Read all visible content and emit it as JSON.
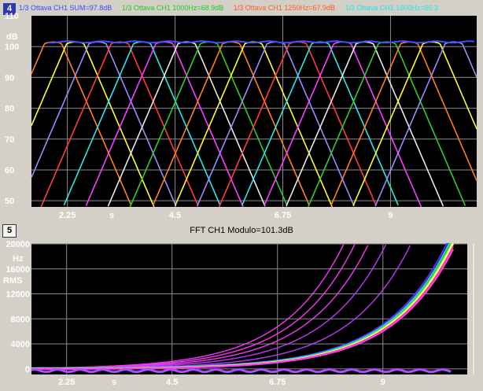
{
  "top_panel": {
    "badge": "4",
    "legend": [
      {
        "text": "1/3 Ottava CH1 SUM=97.8dB",
        "color": "#3a4bff"
      },
      {
        "text": "1/3 Ottava CH1 1000Hz=68.9dB",
        "color": "#1ec81e"
      },
      {
        "text": "1/3 Ottava CH1 1250Hz=67.9dB",
        "color": "#ff5a1e"
      },
      {
        "text": "1/3 Ottava CH1 1600Hz=66.3",
        "color": "#1ee6e6"
      }
    ]
  },
  "bottom_panel": {
    "badge": "5",
    "title": "FFT CH1 Modulo=101.3dB"
  },
  "colors": {
    "plot_bg": "#000000",
    "grid": "#8a8a8a",
    "sum_line": "#3c50ff",
    "band_palette": [
      "#ff7f1e",
      "#ffff2e",
      "#9a8aff",
      "#ff3c3c",
      "#2ee6e6",
      "#ff3cff",
      "#e8e8e8",
      "#2ecc2e"
    ]
  },
  "chart_data": [
    {
      "type": "line",
      "title": "",
      "xlabel": "s",
      "ylabel": "dB",
      "xlim": [
        1.5,
        10.8
      ],
      "ylim": [
        48,
        110
      ],
      "xticks": [
        2.25,
        4.5,
        6.75,
        9
      ],
      "yticks": [
        50,
        60,
        70,
        80,
        90,
        100,
        110
      ],
      "grid": true,
      "series": [
        {
          "name": "1/3 Ottava CH1 SUM=97.8dB",
          "role": "sum",
          "level": 101.5
        },
        {
          "role": "bands",
          "count": 19,
          "first_peak_s": 1.95,
          "spacing_s": 0.465,
          "peak_level": 101.5,
          "plateau_s": 0.36,
          "slope_db_per_s": 19
        }
      ]
    },
    {
      "type": "heatmap",
      "title": "FFT CH1 Modulo=101.3dB",
      "xlabel": "s",
      "ylabel": "Hz",
      "yunit": "RMS",
      "xlim": [
        1.5,
        10.8
      ],
      "ylim": [
        -900,
        20000
      ],
      "xticks": [
        2.25,
        4.5,
        6.75,
        9
      ],
      "yticks": [
        0,
        4000,
        8000,
        12000,
        16000,
        20000
      ],
      "grid": true,
      "sweep": {
        "type": "exponential",
        "start_hz": 20,
        "end_hz": 20000,
        "start_s": 1.5,
        "end_s": 10.5
      },
      "harmonics": [
        1,
        2,
        3,
        4,
        5,
        6
      ]
    }
  ]
}
